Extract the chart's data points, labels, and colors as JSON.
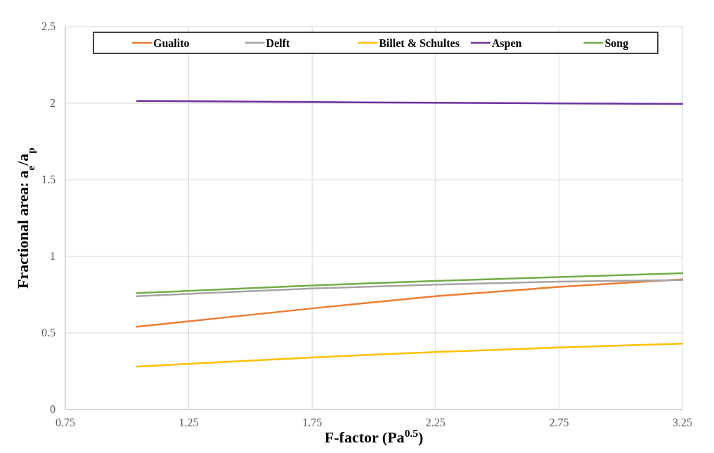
{
  "chart_data": {
    "type": "line",
    "xlabel": "F-factor (Pa$^{0.5}$)",
    "ylabel": "Fractional area: a$_{e}$/a$_{p}$",
    "x": [
      1.04,
      1.75,
      2.25,
      2.75,
      3.25
    ],
    "series": [
      {
        "name": "Gualito",
        "color": "#ed7d31",
        "values": [
          0.54,
          0.66,
          0.74,
          0.8,
          0.85
        ]
      },
      {
        "name": "Delft",
        "color": "#a5a5a5",
        "values": [
          0.74,
          0.79,
          0.815,
          0.835,
          0.845
        ]
      },
      {
        "name": "Billet & Schultes",
        "color": "#ffc000",
        "values": [
          0.28,
          0.34,
          0.375,
          0.405,
          0.43
        ]
      },
      {
        "name": "Aspen",
        "color": "#7030a0",
        "values": [
          2.015,
          2.008,
          2.003,
          1.999,
          1.995
        ]
      },
      {
        "name": "Song",
        "color": "#70ad47",
        "values": [
          0.76,
          0.81,
          0.84,
          0.865,
          0.89
        ]
      }
    ],
    "xlim": [
      0.75,
      3.25
    ],
    "xticks": [
      0.75,
      1.25,
      1.75,
      2.25,
      2.75,
      3.25
    ],
    "ylim": [
      0,
      2.5
    ],
    "yticks": [
      0,
      0.5,
      1,
      1.5,
      2,
      2.5
    ],
    "grid": true,
    "legend": "top",
    "marker": "none",
    "line_style": "solid"
  }
}
